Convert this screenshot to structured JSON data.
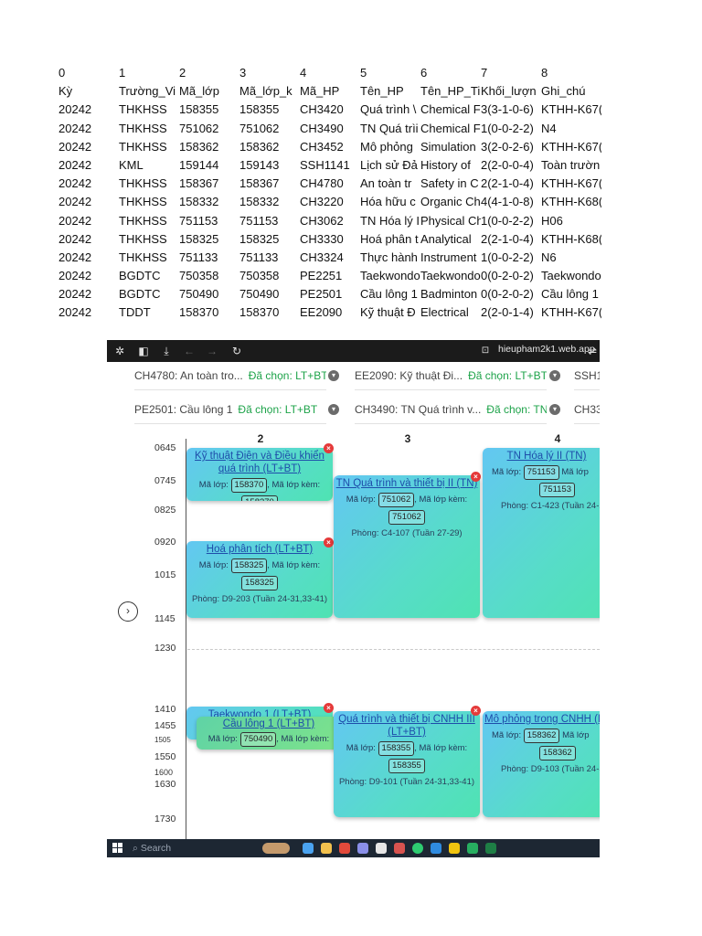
{
  "sheet": {
    "rows": [
      [
        "0",
        "1",
        "2",
        "3",
        "4",
        "5",
        "6",
        "7",
        "8"
      ],
      [
        "Kỳ",
        "Trường_Vi",
        "Mã_lớp",
        "Mã_lớp_k",
        "Mã_HP",
        "Tên_HP",
        "Tên_HP_Ti",
        "Khối_lượn",
        "Ghi_chú"
      ],
      [
        "20242",
        "THKHSS",
        "158355",
        "158355",
        "CH3420",
        "Quá trình \\",
        "Chemical F",
        "3(3-1-0-6)",
        "KTHH-K67("
      ],
      [
        "20242",
        "THKHSS",
        "751062",
        "751062",
        "CH3490",
        "TN Quá trìi",
        "Chemical F",
        "1(0-0-2-2)",
        "N4"
      ],
      [
        "20242",
        "THKHSS",
        "158362",
        "158362",
        "CH3452",
        "Mô phỏng",
        "Simulation",
        "3(2-0-2-6)",
        "KTHH-K67("
      ],
      [
        "20242",
        "KML",
        "159144",
        "159143",
        "SSH1141",
        "Lịch sử Đả",
        "History of",
        "2(2-0-0-4)",
        "Toàn trườn"
      ],
      [
        "20242",
        "THKHSS",
        "158367",
        "158367",
        "CH4780",
        "An toàn tr",
        "Safety in C",
        "2(2-1-0-4)",
        "KTHH-K67("
      ],
      [
        "20242",
        "THKHSS",
        "158332",
        "158332",
        "CH3220",
        "Hóa hữu c",
        "Organic Ch",
        "4(4-1-0-8)",
        "KTHH-K68("
      ],
      [
        "20242",
        "THKHSS",
        "751153",
        "751153",
        "CH3062",
        "TN Hóa lý I",
        "Physical Ch",
        "1(0-0-2-2)",
        "H06"
      ],
      [
        "20242",
        "THKHSS",
        "158325",
        "158325",
        "CH3330",
        "Hoá phân t",
        "Analytical",
        "2(2-1-0-4)",
        "KTHH-K68("
      ],
      [
        "20242",
        "THKHSS",
        "751133",
        "751133",
        "CH3324",
        "Thực hành",
        "Instrument",
        "1(0-0-2-2)",
        "N6"
      ],
      [
        "20242",
        "BGDTC",
        "750358",
        "750358",
        "PE2251",
        "Taekwondo",
        "Taekwondo",
        "0(0-2-0-2)",
        "Taekwondo"
      ],
      [
        "20242",
        "BGDTC",
        "750490",
        "750490",
        "PE2501",
        "Cầu lông 1",
        "Badminton",
        "0(0-2-0-2)",
        "Cầu lông 1"
      ],
      [
        "20242",
        "TDDT",
        "158370",
        "158370",
        "EE2090",
        "Kỹ thuật Đ",
        "Electrical",
        "2(2-0-1-4)",
        "KTHH-K67("
      ]
    ]
  },
  "browser": {
    "url": "hieupham2k1.web.app"
  },
  "filters": [
    {
      "course": "CH4780: An toàn tro...",
      "chosen": "Đã chọn: LT+BT"
    },
    {
      "course": "EE2090: Kỹ thuật Đi...",
      "chosen": "Đã chọn: LT+BT"
    },
    {
      "course": "SSH1",
      "chosen": ""
    },
    {
      "course": "PE2501: Cầu lông 1",
      "chosen": "Đã chọn: LT+BT"
    },
    {
      "course": "CH3490: TN Quá trình v...",
      "chosen": "Đã chọn: TN"
    },
    {
      "course": "CH33",
      "chosen": ""
    }
  ],
  "days": [
    "2",
    "3",
    "4"
  ],
  "times": [
    "0645",
    "0745",
    "0825",
    "0920",
    "1015",
    "1145",
    "1230",
    "1410",
    "1455",
    "1505",
    "1550",
    "1600",
    "1630",
    "1730"
  ],
  "labels": {
    "ma_lop": "Mã lớp:",
    "ma_lop_kem": "Mã lớp kèm:",
    "ma_lop_short": "Mã lớp",
    "search": "Search"
  },
  "events": {
    "kythuatdien": {
      "title": "Kỹ thuật Điện và Điều khiển quá trình (LT+BT)",
      "class": "158370",
      "attached": "158370"
    },
    "hoaphantich": {
      "title": "Hoá phân tích (LT+BT)",
      "class": "158325",
      "attached": "158325",
      "room": "Phòng: D9-203 (Tuần 24-31,33-41)"
    },
    "tnquatrinh": {
      "title": "TN Quá trình và thiết bị II (TN)",
      "class": "751062",
      "attached": "751062",
      "room": "Phòng: C4-107 (Tuần 27-29)"
    },
    "tnhoaly": {
      "title": "TN Hóa lý II (TN)",
      "class": "751153",
      "attached": "751153",
      "room": "Phòng: C1-423 (Tuần 24-2"
    },
    "taekwondo": {
      "title": "Taekwondo 1 (LT+BT)"
    },
    "caulong": {
      "title": "Cầu lông 1 (LT+BT)",
      "class": "750490"
    },
    "quatrinhcnhh": {
      "title": "Quá trình và thiết bị CNHH III (LT+BT)",
      "class": "158355",
      "attached": "158355",
      "room": "Phòng: D9-101 (Tuần 24-31,33-41)"
    },
    "mophong": {
      "title": "Mô phỏng trong CNHH (L",
      "class": "158362",
      "attached": "158362",
      "room": "Phòng: D9-103 (Tuần 24-3"
    }
  },
  "colors": {
    "accent_green": "#1ea34a",
    "link_blue": "#1e4eaa",
    "close_red": "#e53a3a"
  }
}
